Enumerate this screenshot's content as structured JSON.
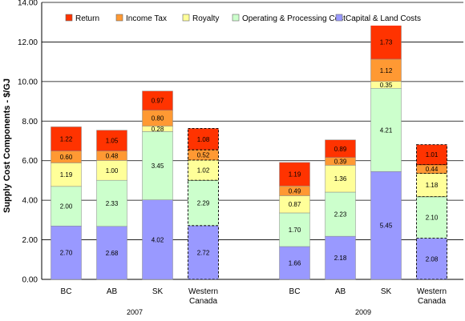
{
  "chart_data": {
    "type": "bar",
    "stacked": true,
    "ylabel": "Supply Cost Components - $/GJ",
    "ylim": [
      0,
      14
    ],
    "yticks": [
      "0.00",
      "2.00",
      "4.00",
      "6.00",
      "8.00",
      "10.00",
      "12.00",
      "14.00"
    ],
    "grid": true,
    "legend_position": "top",
    "groups": [
      {
        "label": "2007",
        "categories": [
          "BC",
          "AB",
          "SK",
          "Western Canada"
        ]
      },
      {
        "label": "2009",
        "categories": [
          "BC",
          "AB",
          "SK",
          "Western Canada"
        ]
      }
    ],
    "dashed_categories": [
      "Western Canada"
    ],
    "series": [
      {
        "name": "Capital & Land Costs",
        "color": "#9999ff",
        "values": [
          2.7,
          2.68,
          4.02,
          2.72,
          1.66,
          2.18,
          5.45,
          2.08
        ],
        "labels": [
          "2.70",
          "2.68",
          "4.02",
          "2.72",
          "1.66",
          "2.18",
          "5.45",
          "2.08"
        ]
      },
      {
        "name": "Operating & Processing Cost",
        "color": "#ccffcc",
        "values": [
          2.0,
          2.33,
          3.45,
          2.29,
          1.7,
          2.23,
          4.21,
          2.1
        ],
        "labels": [
          "2.00",
          "2.33",
          "3.45",
          "2.29",
          "1.70",
          "2.23",
          "4.21",
          "2.10"
        ]
      },
      {
        "name": "Royalty",
        "color": "#ffff99",
        "values": [
          1.19,
          1.0,
          0.28,
          1.02,
          0.87,
          1.36,
          0.35,
          1.18
        ],
        "labels": [
          "1.19",
          "1.00",
          "0.28",
          "1.02",
          "0.87",
          "1.36",
          "0.35",
          "1.18"
        ]
      },
      {
        "name": "Income Tax",
        "color": "#ff9933",
        "values": [
          0.6,
          0.48,
          0.8,
          0.52,
          0.49,
          0.39,
          1.12,
          0.44
        ],
        "labels": [
          "0.60",
          "0.48",
          "0.80",
          "0.52",
          "0.49",
          "0.39",
          "1.12",
          "0.44"
        ]
      },
      {
        "name": "Return",
        "color": "#ff3300",
        "values": [
          1.22,
          1.05,
          0.97,
          1.08,
          1.19,
          0.89,
          1.73,
          1.01
        ],
        "labels": [
          "1.22",
          "1.05",
          "0.97",
          "1.08",
          "1.19",
          "0.89",
          "1.73",
          "1.01"
        ]
      }
    ],
    "legend_order": [
      "Return",
      "Income Tax",
      "Royalty",
      "Operating & Processing Cost",
      "Capital & Land Costs"
    ]
  }
}
